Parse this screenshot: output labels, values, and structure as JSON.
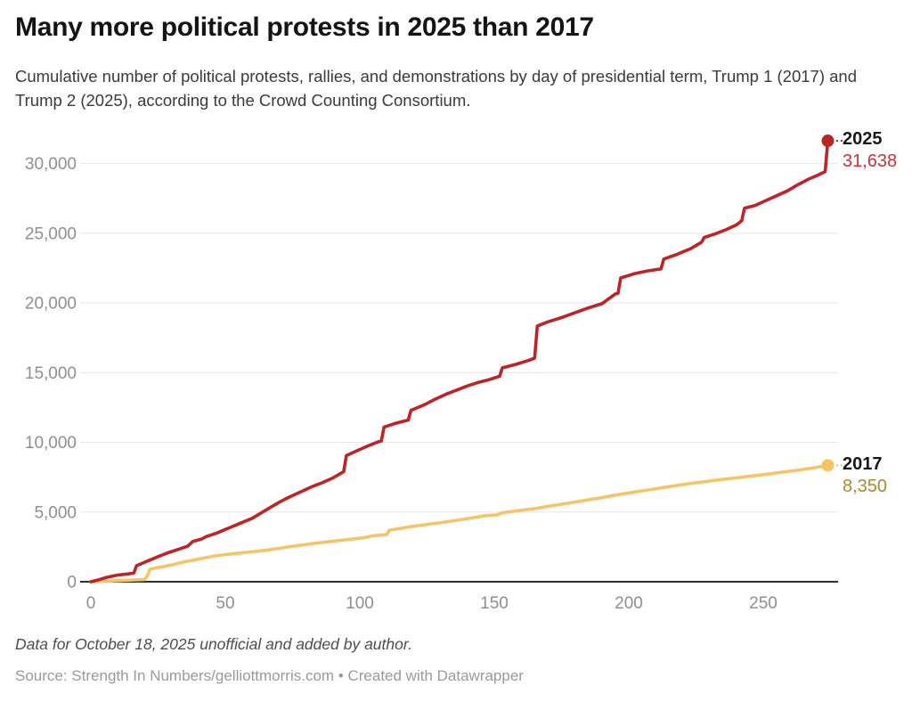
{
  "header": {
    "title": "Many more political protests in 2025 than 2017",
    "subtitle": "Cumulative number of political protests, rallies, and demonstrations by day of presidential term, Trump 1 (2017) and Trump 2 (2025), according to the Crowd Counting Consortium."
  },
  "footer": {
    "note": "Data for October 18, 2025 unofficial and added by author.",
    "source": "Source: Strength In Numbers/gelliottmorris.com • Created with Datawrapper"
  },
  "colors": {
    "red_line": "#bd2426",
    "red_text": "#c73434",
    "gold_line": "#f5c468",
    "gold_text": "#b1872b",
    "grid_line": "#e7e7e7",
    "axis_line": "#303030",
    "tick_text": "#8f8f8f",
    "title_text": "#141414"
  },
  "chart_data": {
    "type": "line",
    "title": "Many more political protests in 2025 than 2017",
    "xlabel": "",
    "ylabel": "",
    "xlim": [
      0,
      278
    ],
    "ylim": [
      0,
      32500
    ],
    "grid": true,
    "legend_position": "end-of-line-labels",
    "x_ticks": [
      0,
      50,
      100,
      150,
      200,
      250
    ],
    "y_ticks": [
      {
        "value": 0,
        "label": "0"
      },
      {
        "value": 5000,
        "label": "5,000"
      },
      {
        "value": 10000,
        "label": "10,000"
      },
      {
        "value": 15000,
        "label": "15,000"
      },
      {
        "value": 20000,
        "label": "20,000"
      },
      {
        "value": 25000,
        "label": "25,000"
      },
      {
        "value": 30000,
        "label": "30,000"
      }
    ],
    "series": [
      {
        "name": "2025",
        "end_label": "31,638",
        "final_value": 31638,
        "color": "#bd2426",
        "points": [
          [
            0,
            0
          ],
          [
            3,
            150
          ],
          [
            6,
            320
          ],
          [
            10,
            480
          ],
          [
            14,
            560
          ],
          [
            16,
            630
          ],
          [
            17,
            1150
          ],
          [
            20,
            1400
          ],
          [
            25,
            1800
          ],
          [
            29,
            2100
          ],
          [
            33,
            2350
          ],
          [
            36,
            2550
          ],
          [
            38,
            2900
          ],
          [
            41,
            3050
          ],
          [
            43,
            3250
          ],
          [
            47,
            3500
          ],
          [
            50,
            3750
          ],
          [
            55,
            4150
          ],
          [
            60,
            4550
          ],
          [
            63,
            4900
          ],
          [
            66,
            5250
          ],
          [
            70,
            5700
          ],
          [
            74,
            6100
          ],
          [
            78,
            6450
          ],
          [
            82,
            6800
          ],
          [
            86,
            7100
          ],
          [
            90,
            7450
          ],
          [
            94,
            7900
          ],
          [
            95,
            9050
          ],
          [
            99,
            9400
          ],
          [
            103,
            9750
          ],
          [
            107,
            10050
          ],
          [
            108,
            10100
          ],
          [
            109,
            11100
          ],
          [
            113,
            11350
          ],
          [
            118,
            11600
          ],
          [
            119,
            12300
          ],
          [
            124,
            12700
          ],
          [
            128,
            13100
          ],
          [
            132,
            13450
          ],
          [
            136,
            13750
          ],
          [
            140,
            14050
          ],
          [
            144,
            14300
          ],
          [
            148,
            14500
          ],
          [
            152,
            14750
          ],
          [
            153,
            15350
          ],
          [
            158,
            15600
          ],
          [
            163,
            15900
          ],
          [
            165,
            16050
          ],
          [
            166,
            18350
          ],
          [
            170,
            18650
          ],
          [
            175,
            18950
          ],
          [
            180,
            19300
          ],
          [
            185,
            19650
          ],
          [
            190,
            19950
          ],
          [
            195,
            20650
          ],
          [
            196,
            20700
          ],
          [
            197,
            21800
          ],
          [
            202,
            22100
          ],
          [
            207,
            22300
          ],
          [
            212,
            22450
          ],
          [
            213,
            23150
          ],
          [
            218,
            23500
          ],
          [
            223,
            23900
          ],
          [
            227,
            24350
          ],
          [
            228,
            24700
          ],
          [
            232,
            24950
          ],
          [
            236,
            25250
          ],
          [
            240,
            25600
          ],
          [
            242,
            25900
          ],
          [
            243,
            26800
          ],
          [
            247,
            27000
          ],
          [
            251,
            27350
          ],
          [
            255,
            27700
          ],
          [
            259,
            28050
          ],
          [
            263,
            28500
          ],
          [
            267,
            28900
          ],
          [
            270,
            29150
          ],
          [
            273,
            29430
          ],
          [
            274,
            31638
          ]
        ]
      },
      {
        "name": "2017",
        "end_label": "8,350",
        "final_value": 8350,
        "color": "#f5c468",
        "points": [
          [
            0,
            0
          ],
          [
            5,
            40
          ],
          [
            10,
            80
          ],
          [
            15,
            120
          ],
          [
            20,
            160
          ],
          [
            21,
            420
          ],
          [
            22,
            900
          ],
          [
            26,
            1050
          ],
          [
            30,
            1200
          ],
          [
            34,
            1400
          ],
          [
            38,
            1550
          ],
          [
            42,
            1700
          ],
          [
            46,
            1850
          ],
          [
            50,
            1950
          ],
          [
            54,
            2030
          ],
          [
            58,
            2110
          ],
          [
            62,
            2190
          ],
          [
            66,
            2280
          ],
          [
            70,
            2400
          ],
          [
            74,
            2520
          ],
          [
            78,
            2620
          ],
          [
            82,
            2720
          ],
          [
            86,
            2820
          ],
          [
            90,
            2900
          ],
          [
            94,
            3000
          ],
          [
            98,
            3080
          ],
          [
            102,
            3180
          ],
          [
            105,
            3300
          ],
          [
            108,
            3350
          ],
          [
            110,
            3380
          ],
          [
            111,
            3700
          ],
          [
            115,
            3820
          ],
          [
            119,
            3950
          ],
          [
            123,
            4060
          ],
          [
            127,
            4160
          ],
          [
            131,
            4260
          ],
          [
            135,
            4380
          ],
          [
            139,
            4500
          ],
          [
            143,
            4620
          ],
          [
            147,
            4740
          ],
          [
            151,
            4800
          ],
          [
            153,
            4950
          ],
          [
            157,
            5050
          ],
          [
            161,
            5150
          ],
          [
            165,
            5250
          ],
          [
            169,
            5380
          ],
          [
            173,
            5500
          ],
          [
            177,
            5620
          ],
          [
            181,
            5750
          ],
          [
            185,
            5880
          ],
          [
            189,
            6000
          ],
          [
            193,
            6150
          ],
          [
            197,
            6280
          ],
          [
            201,
            6400
          ],
          [
            205,
            6520
          ],
          [
            209,
            6640
          ],
          [
            213,
            6760
          ],
          [
            217,
            6880
          ],
          [
            221,
            7000
          ],
          [
            225,
            7100
          ],
          [
            229,
            7200
          ],
          [
            233,
            7300
          ],
          [
            237,
            7390
          ],
          [
            241,
            7480
          ],
          [
            245,
            7570
          ],
          [
            249,
            7660
          ],
          [
            253,
            7760
          ],
          [
            257,
            7860
          ],
          [
            261,
            7960
          ],
          [
            265,
            8070
          ],
          [
            269,
            8180
          ],
          [
            274,
            8350
          ]
        ]
      }
    ]
  }
}
